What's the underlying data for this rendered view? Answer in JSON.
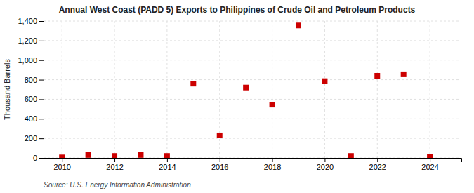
{
  "chart_data": {
    "type": "scatter",
    "title": "Annual West Coast (PADD 5) Exports to Philippines of Crude Oil and Petroleum Products",
    "y_label": "Thousand Barrels",
    "source": "Source: U.S. Energy Information Administration",
    "x": [
      2010,
      2011,
      2012,
      2013,
      2014,
      2015,
      2016,
      2017,
      2018,
      2019,
      2020,
      2021,
      2022,
      2023,
      2024
    ],
    "values": [
      5,
      30,
      20,
      30,
      20,
      760,
      230,
      720,
      545,
      1355,
      785,
      20,
      840,
      855,
      10
    ],
    "color": "#cc0000",
    "marker": "square",
    "xlim": [
      2009.3,
      2025.2
    ],
    "xticks": [
      2010,
      2012,
      2014,
      2016,
      2018,
      2020,
      2022,
      2024
    ],
    "ylim": [
      0,
      1400
    ],
    "yticks": [
      0,
      200,
      400,
      600,
      800,
      {
        "value": 1000,
        "label": "1,000"
      },
      {
        "value": 1200,
        "label": "1,200"
      },
      {
        "value": 1400,
        "label": "1,400"
      }
    ],
    "grid": true
  }
}
